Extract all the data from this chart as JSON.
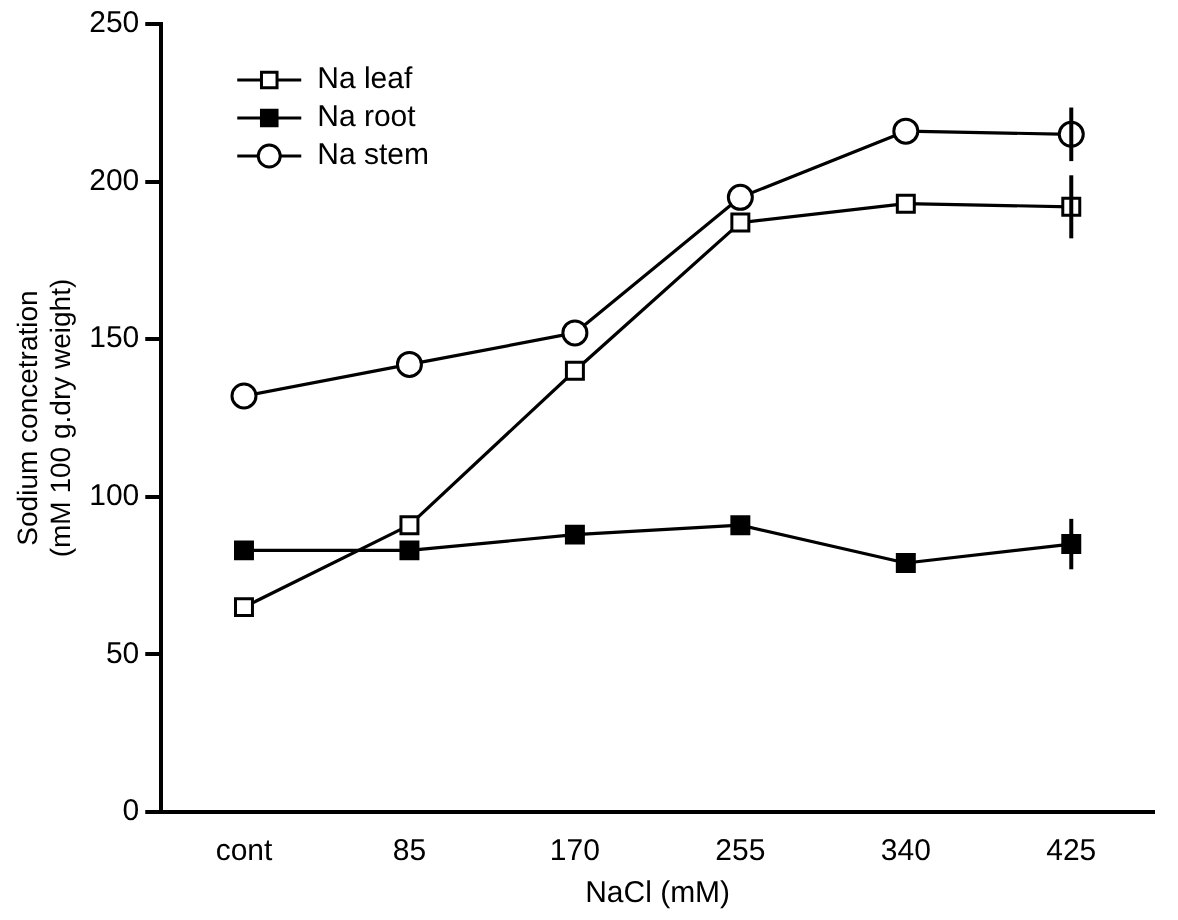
{
  "chart_data": {
    "type": "line",
    "xlabel": "NaCl (mM)",
    "ylabel": "Sodium concetration\n(mM 100 g.dry weight)",
    "categories": [
      "cont",
      "85",
      "170",
      "255",
      "340",
      "425"
    ],
    "series": [
      {
        "name": "Na leaf",
        "color": "#ffffff",
        "marker": "square",
        "values": [
          65,
          91,
          140,
          187,
          193,
          192
        ],
        "errors": [
          null,
          null,
          null,
          null,
          null,
          10
        ]
      },
      {
        "name": "Na root",
        "color": "#000000",
        "marker": "square",
        "values": [
          83,
          83,
          88,
          91,
          79,
          85
        ],
        "errors": [
          null,
          null,
          null,
          null,
          null,
          8
        ]
      },
      {
        "name": "Na stem",
        "color": "#ffffff",
        "marker": "circle",
        "values": [
          132,
          142,
          152,
          195,
          216,
          215
        ],
        "errors": [
          null,
          null,
          null,
          null,
          null,
          8.5
        ]
      }
    ],
    "ylim": [
      0,
      250
    ],
    "yticks": [
      0,
      50,
      100,
      150,
      200,
      250
    ],
    "grid": false,
    "legend": "top left",
    "line_style": "solid"
  }
}
